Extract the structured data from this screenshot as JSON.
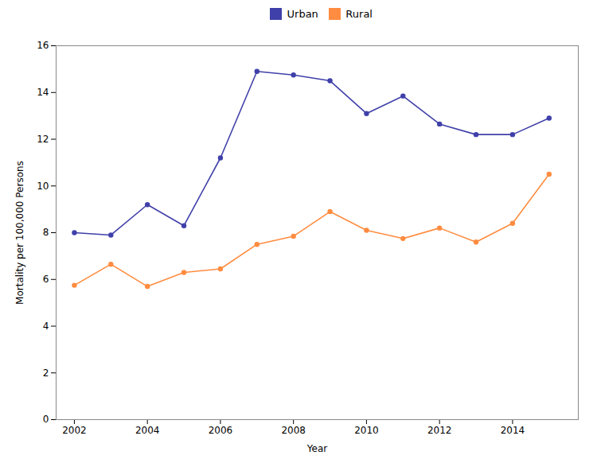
{
  "chart_data": {
    "type": "line",
    "x": [
      2002,
      2003,
      2004,
      2005,
      2006,
      2007,
      2008,
      2009,
      2010,
      2011,
      2012,
      2013,
      2014,
      2015
    ],
    "series": [
      {
        "name": "Urban",
        "color": "#4040aa",
        "values": [
          8.0,
          7.9,
          9.2,
          8.3,
          11.2,
          14.9,
          14.75,
          14.5,
          13.1,
          13.85,
          12.65,
          12.2,
          12.2,
          12.9
        ]
      },
      {
        "name": "Rural",
        "color": "#ff8c40",
        "values": [
          5.75,
          6.65,
          5.7,
          6.3,
          6.45,
          7.5,
          7.85,
          8.9,
          8.1,
          7.75,
          8.2,
          7.6,
          8.4,
          10.5
        ]
      }
    ],
    "xlabel": "Year",
    "ylabel": "Mortality per 100,000 Persons",
    "xlim": [
      2001.5,
      2015.8
    ],
    "ylim": [
      0,
      16
    ],
    "xticks": [
      2002,
      2004,
      2006,
      2008,
      2010,
      2012,
      2014
    ],
    "yticks": [
      0,
      2,
      4,
      6,
      8,
      10,
      12,
      14,
      16
    ],
    "legend": "top",
    "marker": "circle"
  }
}
